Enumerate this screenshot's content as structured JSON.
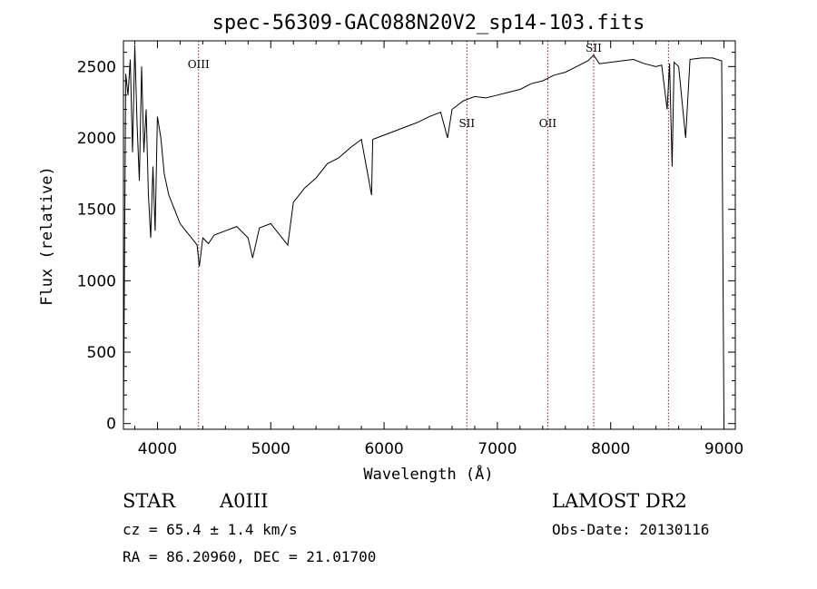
{
  "chart_data": {
    "type": "line",
    "title": "spec-56309-GAC088N20V2_sp14-103.fits",
    "xlabel": "Wavelength (Å)",
    "ylabel": "Flux (relative)",
    "xlim": [
      3700,
      9100
    ],
    "ylim": [
      -40,
      2680
    ],
    "x_ticks": [
      4000,
      5000,
      6000,
      7000,
      8000,
      9000
    ],
    "y_ticks": [
      0,
      500,
      1000,
      1500,
      2000,
      2500
    ],
    "grid": false,
    "series": [
      {
        "x": [
          3700,
          3720,
          3740,
          3760,
          3780,
          3800,
          3820,
          3840,
          3860,
          3880,
          3900,
          3920,
          3940,
          3960,
          3980,
          4000,
          4030,
          4060,
          4100,
          4150,
          4200,
          4250,
          4300,
          4350,
          4370,
          4400,
          4450,
          4500,
          4600,
          4700,
          4800,
          4840,
          4900,
          5000,
          5100,
          5150,
          5200,
          5300,
          5400,
          5500,
          5600,
          5700,
          5800,
          5890,
          5900,
          6000,
          6100,
          6200,
          6300,
          6400,
          6500,
          6560,
          6600,
          6700,
          6800,
          6900,
          7000,
          7100,
          7200,
          7300,
          7400,
          7500,
          7600,
          7700,
          7800,
          7850,
          7900,
          8000,
          8100,
          8200,
          8300,
          8400,
          8450,
          8498,
          8520,
          8542,
          8560,
          8600,
          8662,
          8700,
          8800,
          8900,
          8980,
          9000
        ],
        "y": [
          0,
          2450,
          2300,
          2550,
          1900,
          2650,
          2100,
          1700,
          2500,
          1900,
          2200,
          1600,
          1300,
          1800,
          1350,
          2150,
          2000,
          1750,
          1600,
          1500,
          1400,
          1350,
          1300,
          1250,
          1100,
          1300,
          1260,
          1320,
          1350,
          1380,
          1300,
          1160,
          1370,
          1400,
          1300,
          1250,
          1550,
          1650,
          1720,
          1820,
          1860,
          1930,
          1990,
          1600,
          1990,
          2020,
          2050,
          2080,
          2110,
          2150,
          2180,
          2000,
          2200,
          2260,
          2290,
          2280,
          2300,
          2320,
          2340,
          2380,
          2400,
          2440,
          2460,
          2500,
          2540,
          2580,
          2520,
          2530,
          2540,
          2550,
          2520,
          2500,
          2510,
          2200,
          2520,
          1800,
          2530,
          2500,
          2000,
          2550,
          2560,
          2560,
          2540,
          0
        ]
      }
    ],
    "line_markers": [
      {
        "label": "OIII",
        "x": 4363
      },
      {
        "label": "SII",
        "x": 6731
      },
      {
        "label": "OII",
        "x": 7445
      },
      {
        "label": "SII",
        "x": 7850
      },
      {
        "label": "",
        "x": 8510
      }
    ]
  },
  "info": {
    "object_class": "STAR",
    "subclass": "A0III",
    "survey": "LAMOST DR2",
    "cz": "cz = 65.4 ± 1.4 km/s",
    "obs_date": "Obs-Date: 20130116",
    "coords": "RA =  86.20960, DEC =  21.01700"
  },
  "colors": {
    "spectrum": "#000000",
    "marker": "#8b1a1a",
    "axes": "#000000"
  }
}
